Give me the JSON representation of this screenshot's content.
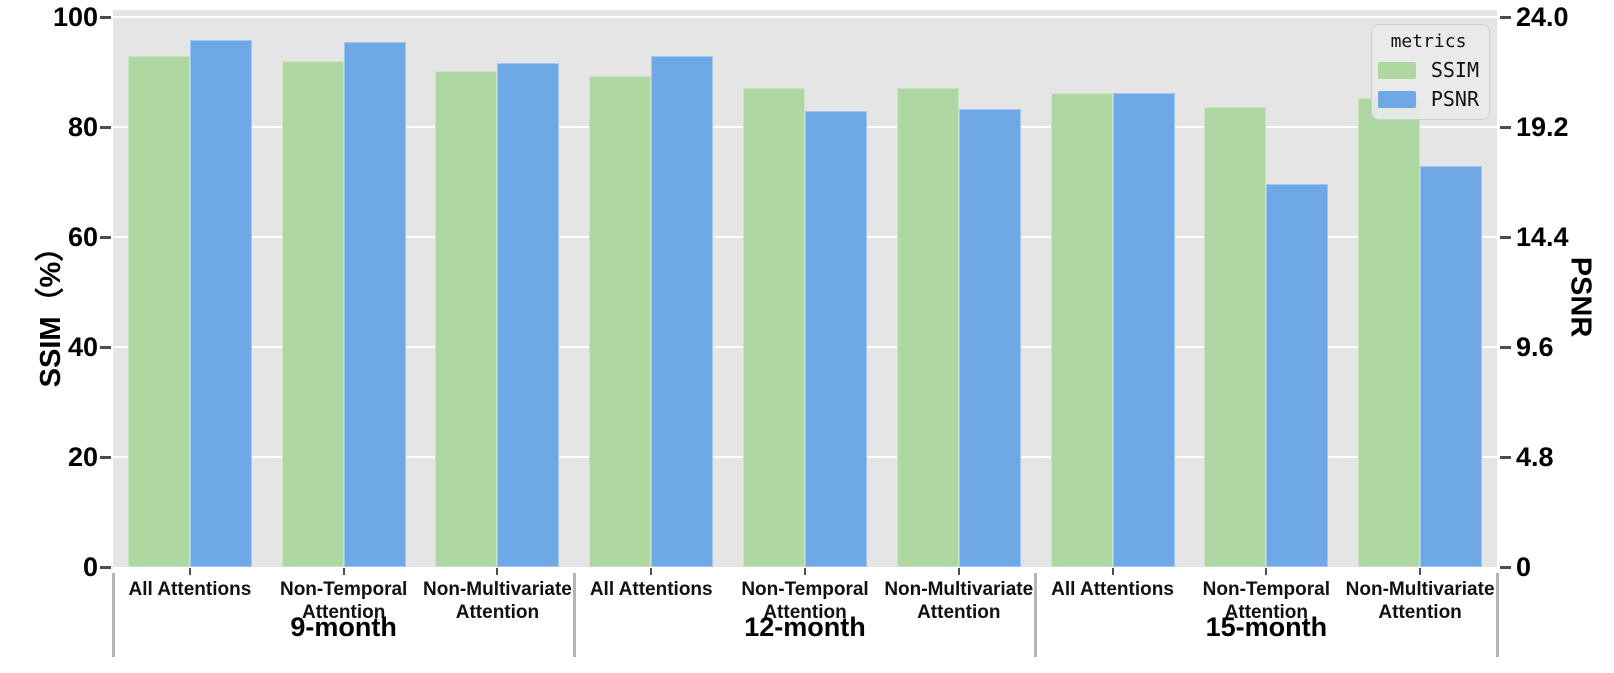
{
  "chart_data": {
    "type": "bar",
    "title": "",
    "groups": [
      "9-month",
      "12-month",
      "15-month"
    ],
    "categories": [
      "All Attentions",
      "Non-Temporal Attention",
      "Non-Multivariate Attention"
    ],
    "series": [
      {
        "name": "SSIM",
        "axis": "left",
        "color": "#aed7a2",
        "values": [
          [
            93.0,
            92.0,
            90.2
          ],
          [
            89.3,
            87.1,
            87.1
          ],
          [
            86.2,
            83.7,
            85.2
          ]
        ]
      },
      {
        "name": "PSNR",
        "axis": "right",
        "color": "#6fa8e6",
        "values": [
          [
            23.0,
            22.9,
            22.0
          ],
          [
            22.3,
            19.9,
            20.0
          ],
          [
            20.7,
            16.7,
            17.5
          ]
        ]
      }
    ],
    "left_axis": {
      "label": "SSIM（%）",
      "min": 0,
      "max": 100,
      "ticks": [
        "100",
        "80",
        "60",
        "40",
        "20",
        "0"
      ]
    },
    "right_axis": {
      "label": "PSNR",
      "min": 0,
      "max": 24,
      "ticks": [
        "24.0",
        "19.2",
        "14.4",
        "9.6",
        "4.8",
        "0"
      ]
    },
    "legend": {
      "title": "metrics",
      "entries": [
        "SSIM",
        "PSNR"
      ],
      "position": "top-right"
    },
    "style": {
      "plot_bg": "#e5e5e5",
      "grid": "on",
      "grid_color": "#ffffff",
      "divider_color": "#b5b5b5"
    }
  }
}
